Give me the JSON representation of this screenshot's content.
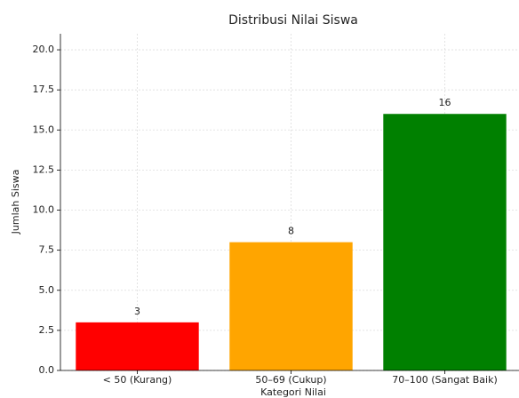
{
  "chart_data": {
    "type": "bar",
    "title": "Distribusi Nilai Siswa",
    "xlabel": "Kategori Nilai",
    "ylabel": "Jumlah Siswa",
    "categories": [
      "< 50 (Kurang)",
      "50–69 (Cukup)",
      "70–100 (Sangat Baik)"
    ],
    "values": [
      3,
      8,
      16
    ],
    "colors": [
      "#ff0000",
      "#ffa500",
      "#008000"
    ],
    "ylim": [
      0,
      21
    ],
    "yticks": [
      {
        "value": 0,
        "label": "0.0"
      },
      2.5,
      {
        "value": 5,
        "label": "5.0"
      },
      7.5,
      {
        "value": 10,
        "label": "10.0"
      },
      12.5,
      {
        "value": 15,
        "label": "15.0"
      },
      17.5,
      {
        "value": 20,
        "label": "20.0"
      }
    ],
    "grid": true
  }
}
